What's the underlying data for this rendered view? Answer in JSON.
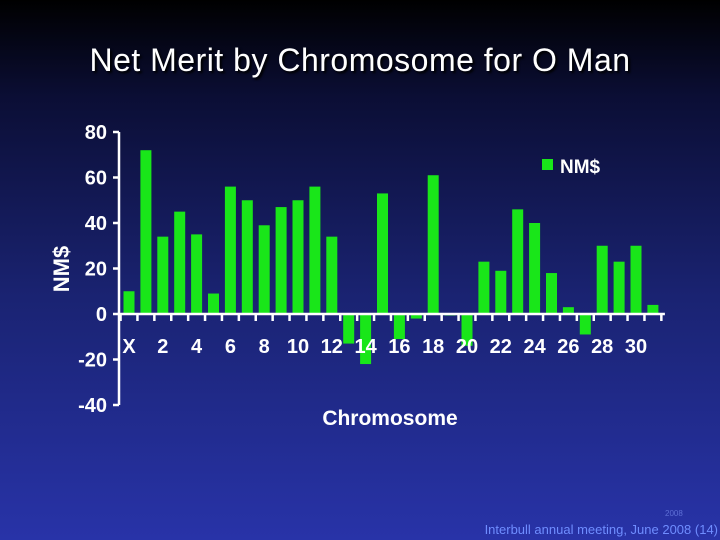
{
  "slide": {
    "title": "Net Merit by Chromosome for O Man",
    "footer_year": "2008",
    "footer": "Interbull annual meeting, June 2008 (14)"
  },
  "colors": {
    "bar": "#19e619",
    "axis": "#ffffff",
    "text": "#ffffff"
  },
  "chart_data": {
    "type": "bar",
    "title": "",
    "xlabel": "Chromosome",
    "ylabel": "NM$",
    "ylim": [
      -40,
      80
    ],
    "yticks": [
      80,
      60,
      40,
      20,
      0,
      -20,
      -40
    ],
    "legend": "NM$",
    "legend_position": "top-right",
    "categories": [
      "X",
      "1",
      "2",
      "3",
      "4",
      "5",
      "6",
      "7",
      "8",
      "9",
      "10",
      "11",
      "12",
      "13",
      "14",
      "15",
      "16",
      "17",
      "18",
      "19",
      "20",
      "21",
      "22",
      "23",
      "24",
      "25",
      "26",
      "27",
      "28",
      "29",
      "30",
      "31"
    ],
    "x_tick_labels": [
      "X",
      "2",
      "4",
      "6",
      "8",
      "10",
      "12",
      "14",
      "16",
      "18",
      "20",
      "22",
      "24",
      "26",
      "28",
      "30"
    ],
    "series": [
      {
        "name": "NM$",
        "values": [
          10,
          72,
          34,
          45,
          35,
          9,
          56,
          50,
          39,
          47,
          50,
          56,
          34,
          -13,
          -22,
          53,
          -11,
          -2,
          61,
          0,
          -14,
          23,
          19,
          46,
          40,
          18,
          3,
          -9,
          30,
          23,
          30,
          4
        ]
      }
    ]
  }
}
